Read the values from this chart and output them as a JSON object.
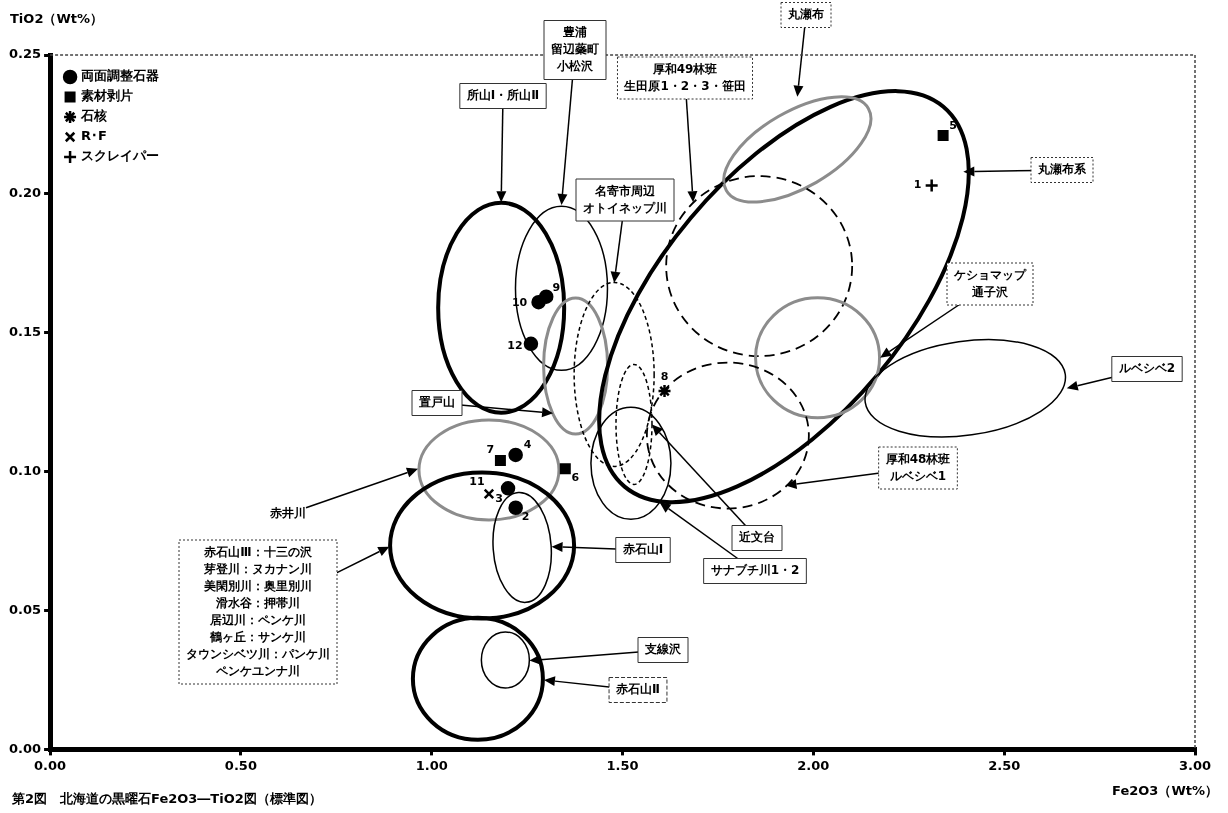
{
  "chart_data": {
    "type": "scatter",
    "xlabel": "Fe2O3（Wt%）",
    "ylabel": "TiO2（Wt%）",
    "xlim": [
      0,
      3
    ],
    "ylim": [
      0,
      0.25
    ],
    "xticks": [
      {
        "value": 0,
        "label": "0.00"
      },
      {
        "value": 0.5,
        "label": "0.50"
      },
      {
        "value": 1,
        "label": "1.00"
      },
      {
        "value": 1.5,
        "label": "1.50"
      },
      {
        "value": 2,
        "label": "2.00"
      },
      {
        "value": 2.5,
        "label": "2.50"
      },
      {
        "value": 3,
        "label": "3.00"
      }
    ],
    "yticks": [
      {
        "value": 0,
        "label": "0.00"
      },
      {
        "value": 0.05,
        "label": "0.05"
      },
      {
        "value": 0.1,
        "label": "0.10"
      },
      {
        "value": 0.15,
        "label": "0.15"
      },
      {
        "value": 0.2,
        "label": "0.20"
      },
      {
        "value": 0.25,
        "label": "0.25"
      }
    ],
    "legend": "top left",
    "annotations": [
      "第2図　北海道の黒曜石Fe2O3―TiO2図（標準図）",
      {
        "text": "9",
        "x": 1.3,
        "y": 0.163
      },
      {
        "text": "10",
        "x": 1.28,
        "y": 0.161
      },
      {
        "text": "12",
        "x": 1.26,
        "y": 0.146
      },
      {
        "text": "4",
        "x": 1.22,
        "y": 0.106
      },
      {
        "text": "3",
        "x": 1.2,
        "y": 0.094
      },
      {
        "text": "2",
        "x": 1.22,
        "y": 0.087
      },
      {
        "text": "5",
        "x": 2.34,
        "y": 0.221
      },
      {
        "text": "7",
        "x": 1.18,
        "y": 0.104
      },
      {
        "text": "6",
        "x": 1.35,
        "y": 0.101
      },
      {
        "text": "8",
        "x": 1.61,
        "y": 0.129
      },
      {
        "text": "11",
        "x": 1.15,
        "y": 0.092
      },
      {
        "text": "1",
        "x": 2.31,
        "y": 0.203
      },
      "所山Ⅰ・所山Ⅱ",
      "豊浦留辺蘂町小松沢",
      "置戸山",
      "名寄市周辺オトイネップ川",
      "近文台",
      "サナブチ川1・2",
      "丸瀬布系",
      "丸瀬布",
      "厚和49林班生田原1・2・3・笹田",
      "ケショマップ通子沢",
      "厚和48林班ルベシベ1",
      "ルベシベ2",
      "赤井川",
      "赤石山Ⅲ：十三の沢芽登川：ヌカナン川美閑別川：奥里別川滑水谷：押帯川居辺川：ペンケ川鶴ヶ丘：サンケ川タウンシベツ川：パンケ川ペンケユンナ川",
      "赤石山Ⅰ",
      "赤石山Ⅱ",
      "支線沢"
    ],
    "series": [
      {
        "type": "scatter",
        "name": "両面調整石器",
        "color": "#000000",
        "marker": "circle",
        "x": [
          1.3,
          1.28,
          1.26,
          1.22,
          1.2,
          1.22
        ],
        "values": [
          0.163,
          0.161,
          0.146,
          0.106,
          0.094,
          0.087
        ]
      },
      {
        "type": "scatter",
        "name": "素材剥片",
        "color": "#000000",
        "marker": "square",
        "x": [
          2.34,
          1.18,
          1.35
        ],
        "values": [
          0.221,
          0.104,
          0.101
        ]
      },
      {
        "type": "scatter",
        "name": "石核",
        "color": "#000000",
        "marker": "cross",
        "x": [
          1.61
        ],
        "values": [
          0.129
        ]
      },
      {
        "type": "scatter",
        "name": "R･F",
        "color": "#000000",
        "marker": "cross",
        "x": [
          1.15
        ],
        "values": [
          0.092
        ]
      },
      {
        "type": "scatter",
        "name": "スクレイパー",
        "color": "#000000",
        "marker": "cross",
        "x": [
          2.31
        ],
        "values": [
          0.203
        ]
      }
    ]
  }
}
